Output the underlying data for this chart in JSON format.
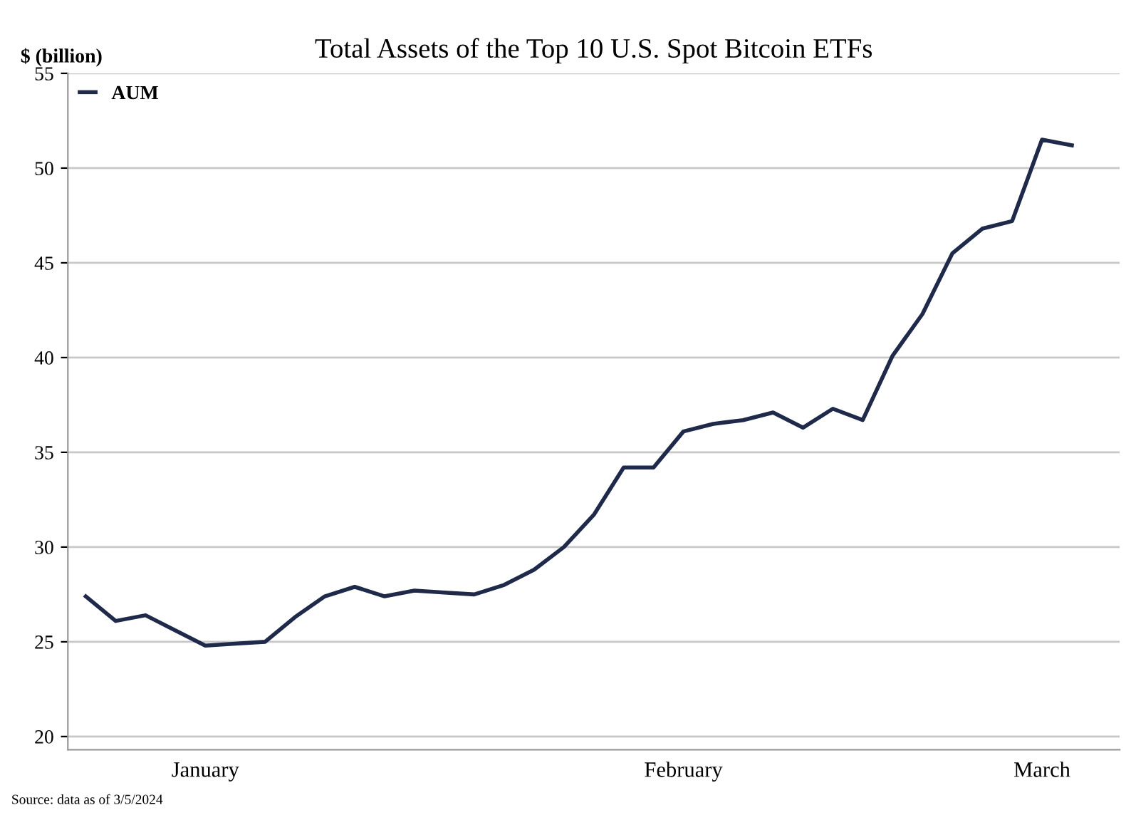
{
  "chart_data": {
    "type": "line",
    "title": "Total Assets of the Top 10 U.S. Spot Bitcoin ETFs",
    "ylabel": "$ (billion)",
    "categories": [
      null,
      null,
      null,
      null,
      "January",
      null,
      null,
      null,
      null,
      null,
      null,
      null,
      null,
      null,
      null,
      null,
      null,
      null,
      null,
      null,
      "February",
      null,
      null,
      null,
      null,
      null,
      null,
      null,
      null,
      null,
      null,
      null,
      "March",
      null
    ],
    "series": [
      {
        "name": "AUM",
        "color": "#1f2a4a",
        "values": [
          27.4,
          26.1,
          26.4,
          25.6,
          24.8,
          24.9,
          25.0,
          26.3,
          27.4,
          27.9,
          27.4,
          27.7,
          27.6,
          27.5,
          28.0,
          28.8,
          30.0,
          31.7,
          34.2,
          34.2,
          36.1,
          36.5,
          36.7,
          37.1,
          36.3,
          37.3,
          36.7,
          40.1,
          42.3,
          45.5,
          46.8,
          47.2,
          51.5,
          51.2
        ]
      }
    ],
    "ylim": [
      19.3,
      55
    ],
    "yticks": [
      20,
      25,
      30,
      35,
      40,
      45,
      50,
      55
    ],
    "grid": "y",
    "legend": "top left",
    "marker": "none",
    "line_style": "solid",
    "annotations": [
      "Source: data as of 3/5/2024"
    ]
  }
}
